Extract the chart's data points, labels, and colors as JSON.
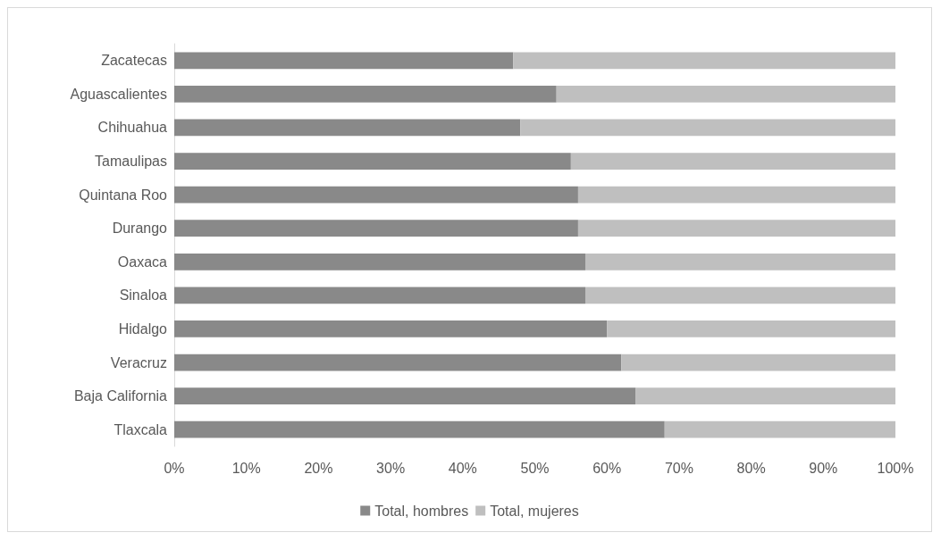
{
  "chart_data": {
    "type": "bar",
    "orientation": "horizontal",
    "stacked": true,
    "categories": [
      "Zacatecas",
      "Aguascalientes",
      "Chihuahua",
      "Tamaulipas",
      "Quintana Roo",
      "Durango",
      "Oaxaca",
      "Sinaloa",
      "Hidalgo",
      "Veracruz",
      "Baja California",
      "Tlaxcala"
    ],
    "series": [
      {
        "name": "Total, hombres",
        "color": "#898989",
        "values": [
          47,
          53,
          48,
          55,
          56,
          56,
          57,
          57,
          60,
          62,
          64,
          68
        ]
      },
      {
        "name": "Total, mujeres",
        "color": "#bfbfbf",
        "values": [
          53,
          47,
          52,
          45,
          44,
          44,
          43,
          43,
          40,
          38,
          36,
          32
        ]
      }
    ],
    "xlim": [
      0,
      100
    ],
    "xticks": [
      {
        "value": 0,
        "label": "0%"
      },
      {
        "value": 10,
        "label": "10%"
      },
      {
        "value": 20,
        "label": "20%"
      },
      {
        "value": 30,
        "label": "30%"
      },
      {
        "value": 40,
        "label": "40%"
      },
      {
        "value": 50,
        "label": "50%"
      },
      {
        "value": 60,
        "label": "60%"
      },
      {
        "value": 70,
        "label": "70%"
      },
      {
        "value": 80,
        "label": "80%"
      },
      {
        "value": 90,
        "label": "90%"
      },
      {
        "value": 100,
        "label": "100%"
      }
    ],
    "grid": false,
    "legend": "bottom"
  }
}
